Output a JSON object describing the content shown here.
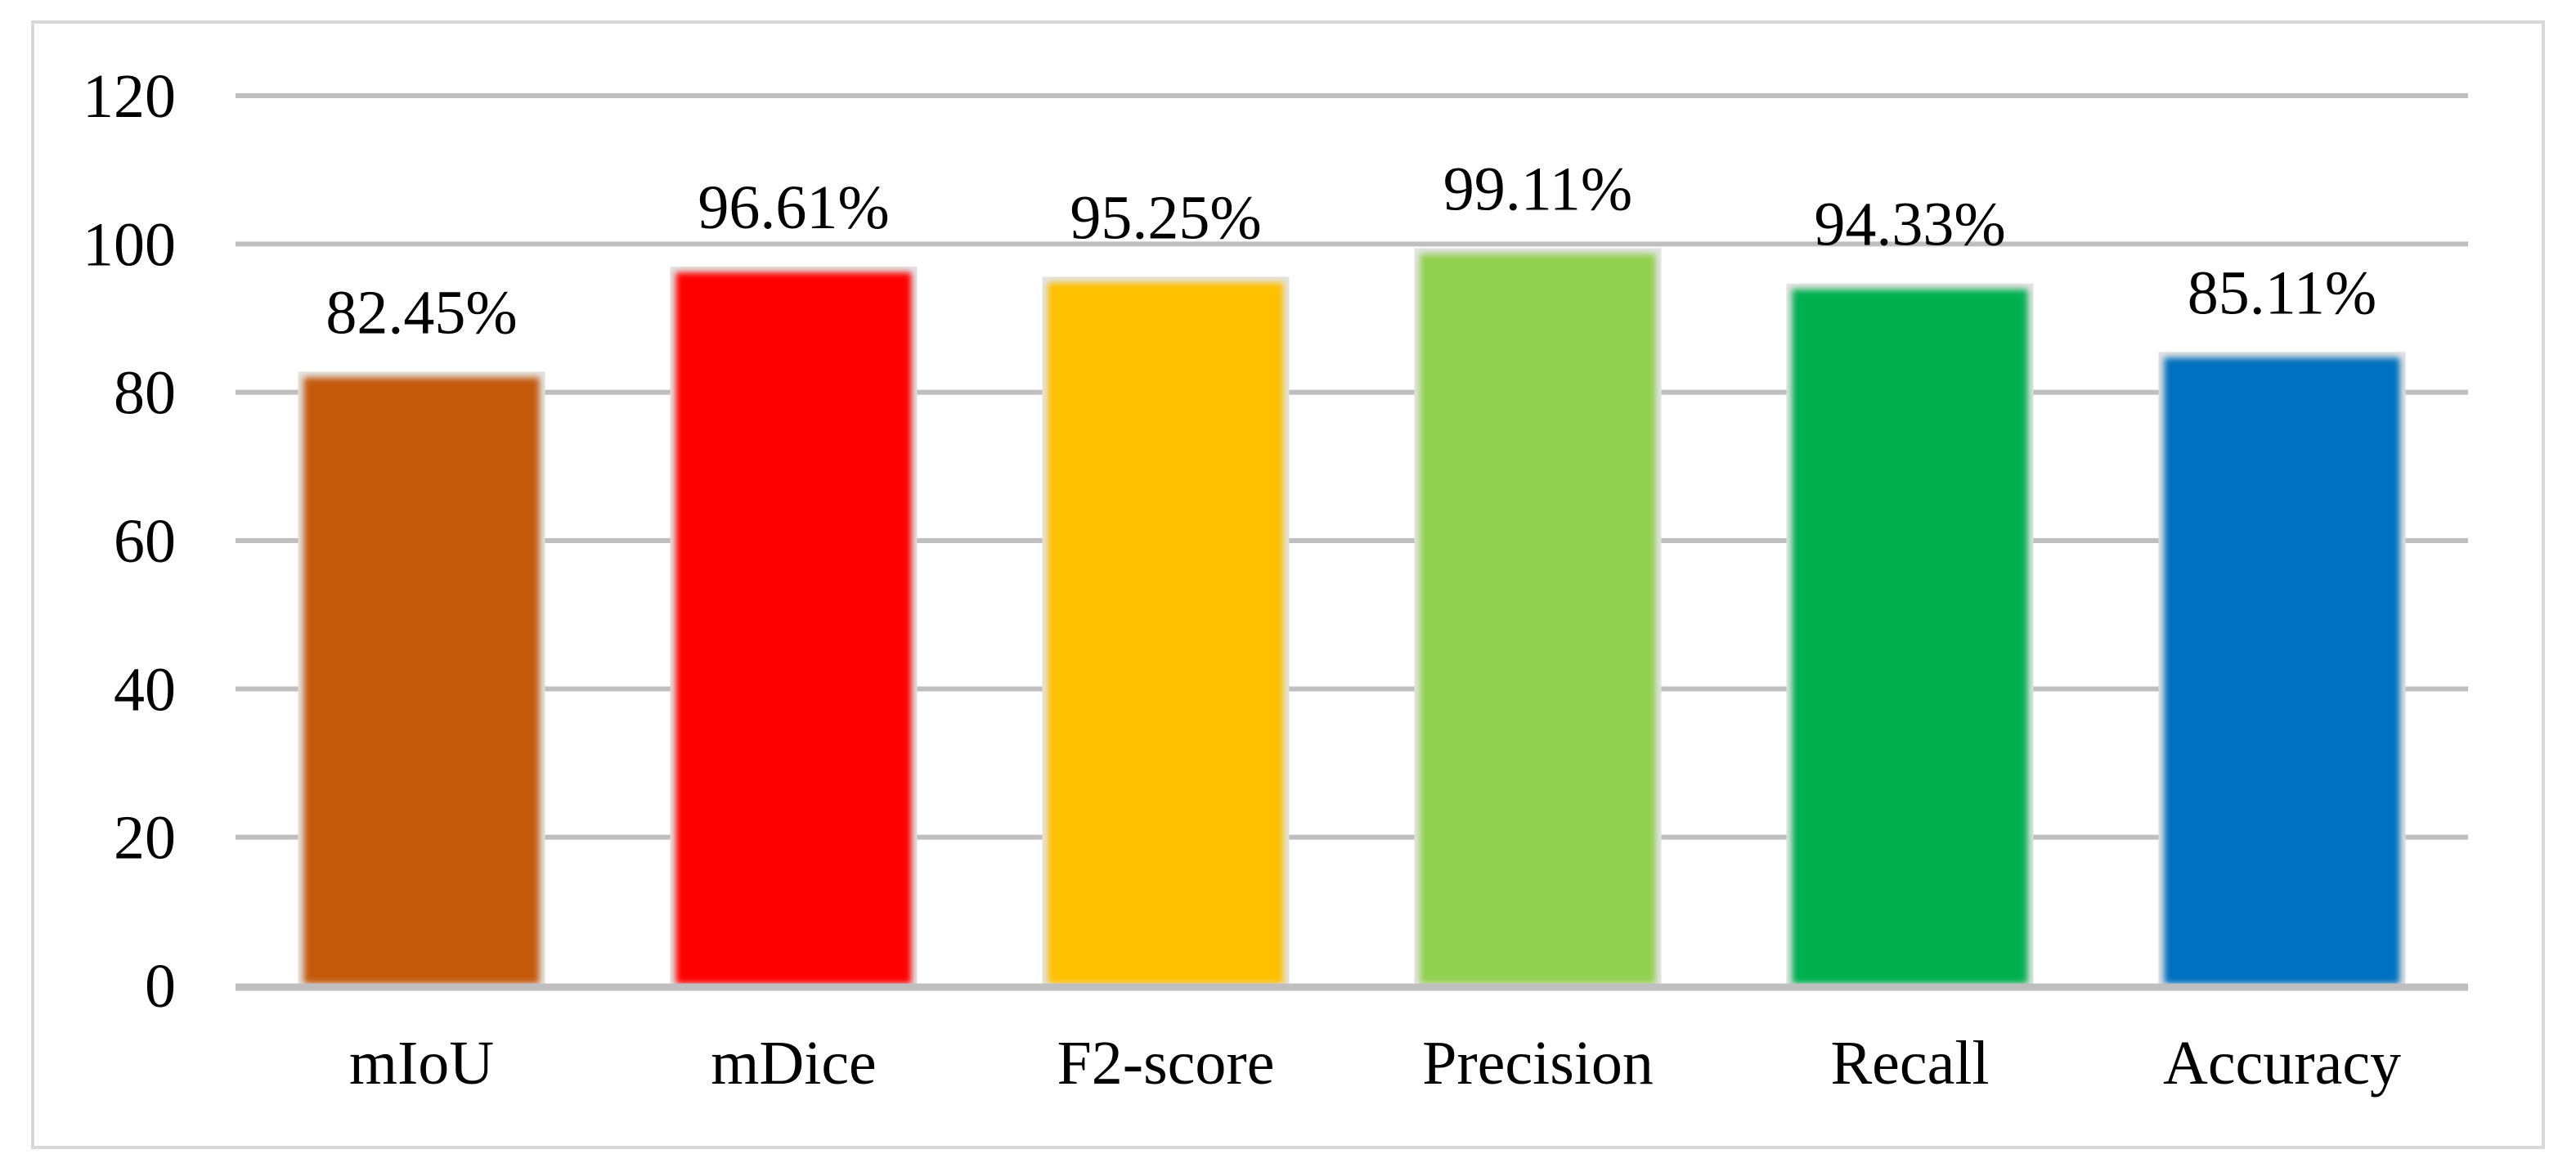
{
  "chart_data": {
    "type": "bar",
    "categories": [
      "mIoU",
      "mDice",
      "F2-score",
      "Precision",
      "Recall",
      "Accuracy"
    ],
    "values": [
      82.45,
      96.61,
      95.25,
      99.11,
      94.33,
      85.11
    ],
    "data_labels": [
      "82.45%",
      "96.61%",
      "95.25%",
      "99.11%",
      "94.33%",
      "85.11%"
    ],
    "colors": [
      "#c55a11",
      "#ff0000",
      "#ffc000",
      "#92d050",
      "#00b050",
      "#0070c0"
    ],
    "ylim": [
      0,
      120
    ],
    "yticks": [
      0,
      20,
      40,
      60,
      80,
      100,
      120
    ],
    "title": "",
    "xlabel": "",
    "ylabel": "",
    "grid": true,
    "legend": "none"
  }
}
